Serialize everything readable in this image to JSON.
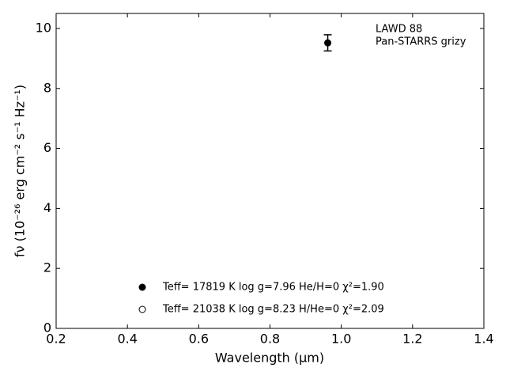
{
  "chart_data": {
    "type": "scatter",
    "xlabel": "Wavelength (μm)",
    "ylabel": "fν (10⁻²⁶ erg cm⁻² s⁻¹ Hz⁻¹)",
    "annotations": [
      "LAWD 88",
      "Pan-STARRS grizy"
    ],
    "x": [
      0.962
    ],
    "values": [
      9.52
    ],
    "errors": [
      0.27
    ],
    "color": "#000000",
    "legend_series": [
      {
        "name": "Teff= 17819 K  log g=7.96  He/H=0  χ²=1.90",
        "marker": "filled"
      },
      {
        "name": "Teff= 21038 K  log g=8.23  H/He=0  χ²=2.09",
        "marker": "open"
      }
    ],
    "xlim": [
      0.2,
      1.4
    ],
    "xticks": [
      0.2,
      0.4,
      0.6,
      0.8,
      {
        "value": 1,
        "label": "1.0"
      },
      1.2,
      1.4
    ],
    "ylim": [
      0,
      10.5
    ],
    "yticks": [
      0,
      2,
      4,
      6,
      8,
      10
    ],
    "legend_position": "lower center"
  }
}
